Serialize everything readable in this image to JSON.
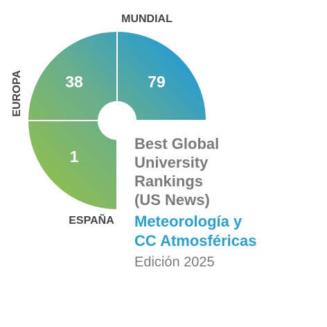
{
  "segments": [
    {
      "label": "MUNDIAL",
      "value": 79
    },
    {
      "label": "EUROPA",
      "value": 38
    },
    {
      "label": "ESPAÑA",
      "value": 1
    }
  ],
  "title": [
    "Best Global",
    "University",
    "Rankings",
    "(US News)"
  ],
  "subject": [
    "Meteorología y",
    "CC Atmosféricas"
  ],
  "edition": "Edición 2025"
}
